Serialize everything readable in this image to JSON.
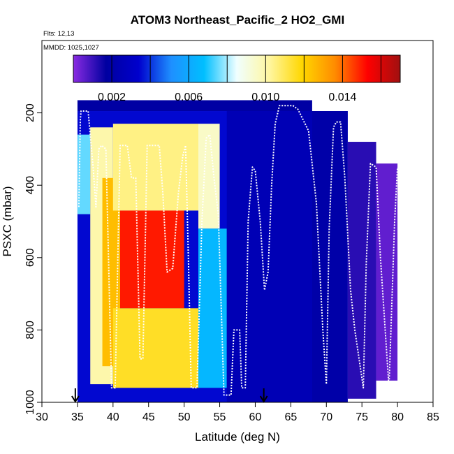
{
  "chart_data": {
    "type": "heatmap",
    "title": "ATOM3 Northeast_Pacific_2 HO2_GMI",
    "flights_label": "Flts: 12,13",
    "dates_label": "MMDD: 1025,1027",
    "xlabel": "Latitude (deg N)",
    "ylabel": "PSXC (mbar)",
    "xlim": [
      30,
      85
    ],
    "ylim": [
      1000,
      0
    ],
    "xticks": [
      "30",
      "35",
      "40",
      "45",
      "50",
      "55",
      "60",
      "65",
      "70",
      "75",
      "80",
      "85"
    ],
    "yticks": [
      "200",
      "400",
      "600",
      "800",
      "1000"
    ],
    "colorbar": {
      "range": [
        0,
        0.017
      ],
      "tick_values": [
        0.002,
        0.006,
        0.01,
        0.014
      ],
      "tick_labels": [
        "0.002",
        "0.006",
        "0.010",
        "0.014"
      ],
      "colors": [
        "#8a2be2",
        "#0000a0",
        "#0000cd",
        "#1e90ff",
        "#00bfff",
        "#f0ffff",
        "#fff6a0",
        "#ffd700",
        "#ff8c00",
        "#ff0000",
        "#a01010"
      ]
    },
    "arrow_latitudes": [
      34.7,
      61.2
    ],
    "columns": [
      {
        "lat0": 35.0,
        "lat1": 68.0,
        "p0": 165,
        "p1": 195,
        "value": 0.0018
      },
      {
        "lat0": 35.0,
        "lat1": 73.0,
        "p0": 195,
        "p1": 1000,
        "value": 0.0035
      },
      {
        "lat0": 35.0,
        "lat1": 36.8,
        "p0": 260,
        "p1": 480,
        "value": 0.0075
      },
      {
        "lat0": 36.8,
        "lat1": 40.0,
        "p0": 240,
        "p1": 950,
        "value": 0.01
      },
      {
        "lat0": 38.5,
        "lat1": 41.0,
        "p0": 380,
        "p1": 900,
        "value": 0.0125
      },
      {
        "lat0": 41.0,
        "lat1": 50.0,
        "p0": 470,
        "p1": 740,
        "value": 0.015
      },
      {
        "lat0": 40.0,
        "lat1": 52.0,
        "p0": 230,
        "p1": 470,
        "value": 0.0105
      },
      {
        "lat0": 52.0,
        "lat1": 55.0,
        "p0": 230,
        "p1": 520,
        "value": 0.0095
      },
      {
        "lat0": 40.0,
        "lat1": 52.0,
        "p0": 740,
        "p1": 960,
        "value": 0.0115
      },
      {
        "lat0": 52.0,
        "lat1": 56.0,
        "p0": 520,
        "p1": 960,
        "value": 0.0065
      },
      {
        "lat0": 56.0,
        "lat1": 68.0,
        "p0": 195,
        "p1": 1000,
        "value": 0.0025
      },
      {
        "lat0": 68.0,
        "lat1": 73.0,
        "p0": 195,
        "p1": 1000,
        "value": 0.002
      },
      {
        "lat0": 73.0,
        "lat1": 77.0,
        "p0": 280,
        "p1": 990,
        "value": 0.0012
      },
      {
        "lat0": 77.0,
        "lat1": 80.0,
        "p0": 340,
        "p1": 940,
        "value": 0.0005
      }
    ],
    "flight_track": [
      [
        35.2,
        460
      ],
      [
        35.4,
        220
      ],
      [
        35.5,
        195
      ],
      [
        36.5,
        195
      ],
      [
        37.2,
        350
      ],
      [
        37.6,
        460
      ],
      [
        38.0,
        300
      ],
      [
        38.4,
        290
      ],
      [
        39.0,
        300
      ],
      [
        39.8,
        960
      ],
      [
        40.3,
        960
      ],
      [
        41.0,
        290
      ],
      [
        42.0,
        290
      ],
      [
        42.6,
        380
      ],
      [
        43.2,
        380
      ],
      [
        43.8,
        880
      ],
      [
        44.2,
        880
      ],
      [
        44.8,
        290
      ],
      [
        46.5,
        290
      ],
      [
        47.0,
        420
      ],
      [
        47.6,
        640
      ],
      [
        48.4,
        630
      ],
      [
        49.2,
        420
      ],
      [
        49.8,
        320
      ],
      [
        50.2,
        290
      ],
      [
        50.6,
        600
      ],
      [
        51.0,
        960
      ],
      [
        51.8,
        960
      ],
      [
        52.5,
        500
      ],
      [
        53.1,
        270
      ],
      [
        53.6,
        260
      ],
      [
        54.2,
        380
      ],
      [
        54.8,
        480
      ],
      [
        55.2,
        730
      ],
      [
        55.6,
        980
      ],
      [
        56.6,
        980
      ],
      [
        57.0,
        800
      ],
      [
        57.8,
        800
      ],
      [
        58.1,
        960
      ],
      [
        58.6,
        960
      ],
      [
        59.0,
        500
      ],
      [
        59.6,
        350
      ],
      [
        60.0,
        360
      ],
      [
        60.7,
        500
      ],
      [
        61.3,
        690
      ],
      [
        61.8,
        640
      ],
      [
        62.3,
        400
      ],
      [
        62.8,
        230
      ],
      [
        63.4,
        180
      ],
      [
        65.3,
        180
      ],
      [
        66.0,
        190
      ],
      [
        67.5,
        250
      ],
      [
        68.6,
        450
      ],
      [
        69.5,
        800
      ],
      [
        70.0,
        950
      ],
      [
        70.4,
        520
      ],
      [
        71.0,
        240
      ],
      [
        71.4,
        225
      ],
      [
        72.0,
        225
      ],
      [
        72.6,
        380
      ],
      [
        73.4,
        690
      ],
      [
        74.0,
        800
      ],
      [
        74.6,
        880
      ],
      [
        75.2,
        960
      ],
      [
        75.6,
        620
      ],
      [
        76.2,
        340
      ],
      [
        77.0,
        350
      ],
      [
        77.6,
        600
      ],
      [
        78.2,
        780
      ],
      [
        78.8,
        960
      ],
      [
        79.6,
        500
      ],
      [
        80.0,
        350
      ]
    ]
  }
}
